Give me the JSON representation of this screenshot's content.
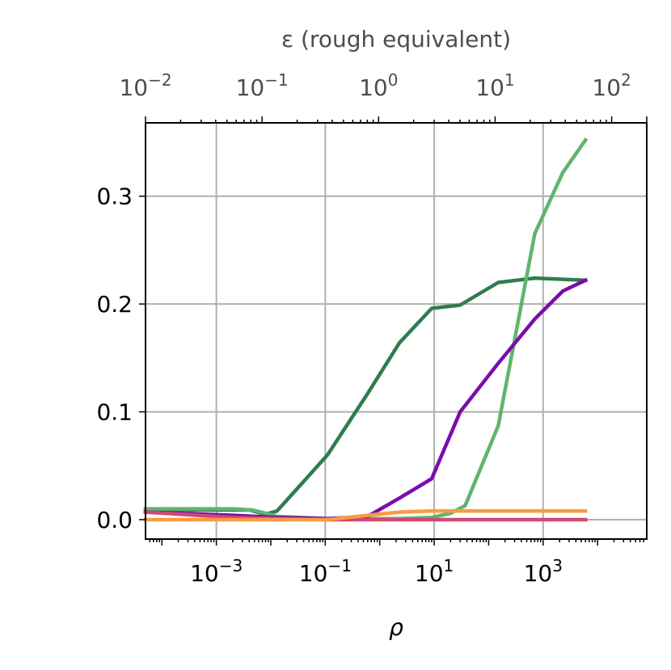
{
  "chart_data": {
    "type": "line",
    "xlabel": "ρ",
    "xscale": "log",
    "xlim": [
      5e-05,
      80000
    ],
    "ylim": [
      -0.018,
      0.368
    ],
    "x_ticks": [
      {
        "base": "10",
        "exp": "−3",
        "value": 0.001
      },
      {
        "base": "10",
        "exp": "−1",
        "value": 0.1
      },
      {
        "base": "10",
        "exp": "1",
        "value": 10
      },
      {
        "base": "10",
        "exp": "3",
        "value": 1000
      }
    ],
    "y_ticks": [
      "0.0",
      "0.1",
      "0.2",
      "0.3"
    ],
    "y_tick_values": [
      0.0,
      0.1,
      0.2,
      0.3
    ],
    "grid": true,
    "secondary_x_axis": {
      "label": "ε (rough equivalent)",
      "position": "top",
      "scale": "log",
      "ticks": [
        {
          "base": "10",
          "exp": "−2",
          "value": 0.01
        },
        {
          "base": "10",
          "exp": "−1",
          "value": 0.1
        },
        {
          "base": "10",
          "exp": "0",
          "value": 1
        },
        {
          "base": "10",
          "exp": "1",
          "value": 10
        },
        {
          "base": "10",
          "exp": "2",
          "value": 100
        }
      ],
      "range": [
        0.01,
        200
      ]
    },
    "series": [
      {
        "color": "#2e7d4f",
        "x": [
          5e-05,
          0.0002,
          0.0009,
          0.004,
          0.008,
          0.013,
          0.11,
          0.6,
          2.3,
          9,
          30,
          150,
          700,
          6000
        ],
        "y": [
          0.009,
          0.009,
          0.009,
          0.009,
          0.005,
          0.008,
          0.06,
          0.117,
          0.164,
          0.196,
          0.199,
          0.22,
          0.224,
          0.222
        ]
      },
      {
        "color": "#5fb56f",
        "x": [
          5e-05,
          0.002,
          0.0045,
          0.008,
          0.013,
          0.11,
          0.6,
          2.3,
          9,
          20,
          37,
          150,
          400,
          700,
          2300,
          6000
        ],
        "y": [
          0.01,
          0.01,
          0.009,
          0.006,
          0.003,
          0.001,
          0.001,
          0.001,
          0.002,
          0.006,
          0.013,
          0.087,
          0.2,
          0.265,
          0.322,
          0.352
        ]
      },
      {
        "color": "#7a0dab",
        "x": [
          5e-05,
          0.002,
          0.013,
          0.11,
          0.6,
          2.3,
          9,
          30,
          150,
          700,
          2300,
          6000
        ],
        "y": [
          0.007,
          0.004,
          0.002,
          0.001,
          0.003,
          0.02,
          0.038,
          0.1,
          0.145,
          0.186,
          0.212,
          0.222
        ]
      },
      {
        "color": "#cf4870",
        "x": [
          5e-05,
          0.002,
          0.013,
          0.11,
          1,
          10,
          100,
          6000
        ],
        "y": [
          0.007,
          0.002,
          0.001,
          0.0,
          0.0,
          0.0,
          0.0,
          0.0
        ]
      },
      {
        "color": "#f79b45",
        "x": [
          5e-05,
          0.002,
          0.013,
          0.11,
          0.6,
          2.3,
          9,
          30,
          150,
          700,
          6000
        ],
        "y": [
          0.0,
          0.0,
          0.0,
          0.0,
          0.004,
          0.007,
          0.008,
          0.008,
          0.008,
          0.008,
          0.008
        ]
      }
    ]
  }
}
